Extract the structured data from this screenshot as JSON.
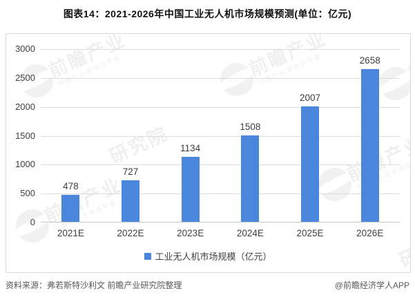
{
  "title": "图表14：2021-2026年中国工业无人机市场规模预测(单位：亿元)",
  "chart_data": {
    "type": "bar",
    "categories": [
      "2021E",
      "2022E",
      "2023E",
      "2024E",
      "2025E",
      "2026E"
    ],
    "values": [
      478,
      727,
      1134,
      1508,
      2007,
      2658
    ],
    "title": "图表14：2021-2026年中国工业无人机市场规模预测(单位：亿元)",
    "xlabel": "",
    "ylabel": "",
    "ylim": [
      0,
      3000
    ],
    "yticks": [
      0,
      500,
      1000,
      1500,
      2000,
      2500,
      3000
    ],
    "grid": true,
    "legend_position": "bottom",
    "legend": [
      "工业无人机市场规模（亿元）"
    ],
    "bar_color": "#4A87DC"
  },
  "legend": {
    "label": "工业无人机市场规模（亿元）"
  },
  "watermark": {
    "brand": "前瞻产业",
    "institute": "研究院",
    "tagline": "中国产业咨询领导者"
  },
  "footer": {
    "source": "资料来源：弗若斯特沙利文 前瞻产业研究院整理",
    "credit": "@前瞻经济学人APP"
  },
  "colors": {
    "bar": "#4A87DC",
    "gridline": "#DCDCDC",
    "axis_text": "#404040",
    "footer_text": "#595959"
  }
}
